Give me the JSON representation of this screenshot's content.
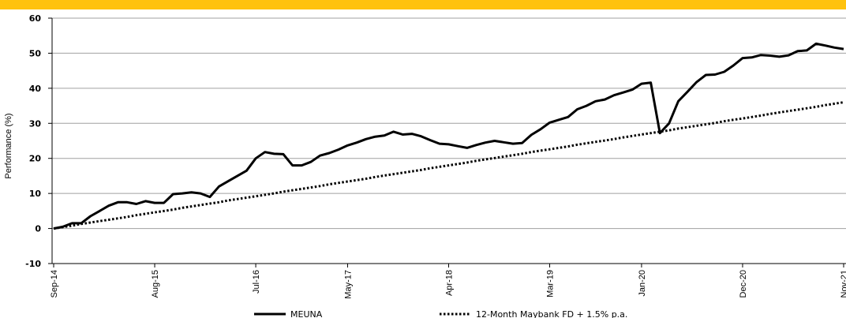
{
  "chart_data": {
    "type": "line",
    "y_label": "Performance (%)",
    "categories": [
      "Sep-14",
      null,
      null,
      null,
      null,
      null,
      null,
      null,
      null,
      null,
      null,
      "Aug-15",
      null,
      null,
      null,
      null,
      null,
      null,
      null,
      null,
      null,
      null,
      "Jul-16",
      null,
      null,
      null,
      null,
      null,
      null,
      null,
      null,
      null,
      "May-17",
      null,
      null,
      null,
      null,
      null,
      null,
      null,
      null,
      null,
      null,
      "Apr-18",
      null,
      null,
      null,
      null,
      null,
      null,
      null,
      null,
      null,
      null,
      "Mar-19",
      null,
      null,
      null,
      null,
      null,
      null,
      null,
      null,
      null,
      "Jan-20",
      null,
      null,
      null,
      null,
      null,
      null,
      null,
      null,
      null,
      null,
      "Dec-20",
      null,
      null,
      null,
      null,
      null,
      null,
      null,
      null,
      null,
      null,
      "Nov-21"
    ],
    "series": [
      {
        "name": "MEUNA",
        "color": "#000000",
        "style": "solid",
        "values": [
          0,
          0.5,
          1.5,
          1.5,
          3.5,
          5,
          6.5,
          7.5,
          7.5,
          7,
          7.8,
          7.3,
          7.3,
          9.8,
          10,
          10.3,
          10,
          9,
          12,
          13.5,
          15,
          16.5,
          20,
          21.8,
          21.3,
          21.2,
          18,
          18,
          19,
          20.8,
          21.5,
          22.5,
          23.7,
          24.5,
          25.5,
          26.2,
          26.5,
          27.6,
          26.8,
          27,
          26.3,
          25.2,
          24.2,
          24,
          23.5,
          23,
          23.8,
          24.5,
          25,
          24.6,
          24.2,
          24.4,
          26.7,
          28.3,
          30.2,
          31,
          31.8,
          34,
          35,
          36.3,
          36.8,
          38,
          38.8,
          39.6,
          41.3,
          41.6,
          27.2,
          30,
          36.3,
          39,
          41.8,
          43.8,
          43.9,
          44.7,
          46.5,
          48.6,
          48.8,
          49.5,
          49.3,
          49,
          49.4,
          50.6,
          50.8,
          52.7,
          52.2,
          51.6,
          51.2
        ]
      },
      {
        "name": "12-Month Maybank FD + 1.5% p.a.",
        "color": "#000000",
        "style": "dotted",
        "values": [
          0,
          0.4,
          0.8,
          1.3,
          1.7,
          2.1,
          2.5,
          2.9,
          3.3,
          3.8,
          4.2,
          4.6,
          5.0,
          5.4,
          5.9,
          6.3,
          6.7,
          7.1,
          7.5,
          8.0,
          8.4,
          8.8,
          9.2,
          9.6,
          10.0,
          10.5,
          10.9,
          11.3,
          11.7,
          12.1,
          12.6,
          13.0,
          13.4,
          13.8,
          14.2,
          14.7,
          15.1,
          15.5,
          15.9,
          16.3,
          16.7,
          17.2,
          17.6,
          18.0,
          18.4,
          18.8,
          19.3,
          19.7,
          20.1,
          20.5,
          20.9,
          21.3,
          21.8,
          22.2,
          22.6,
          23.0,
          23.4,
          23.9,
          24.3,
          24.7,
          25.1,
          25.5,
          26.0,
          26.4,
          26.8,
          27.2,
          27.6,
          28.0,
          28.5,
          28.9,
          29.3,
          29.7,
          30.1,
          30.6,
          31.0,
          31.4,
          31.8,
          32.2,
          32.7,
          33.1,
          33.5,
          33.9,
          34.3,
          34.7,
          35.2,
          35.6,
          36.0
        ]
      }
    ],
    "ylim": [
      -10,
      60
    ],
    "yticks": [
      -10,
      0,
      10,
      20,
      30,
      40,
      50,
      60
    ],
    "grid": true,
    "legend": "bottom"
  }
}
